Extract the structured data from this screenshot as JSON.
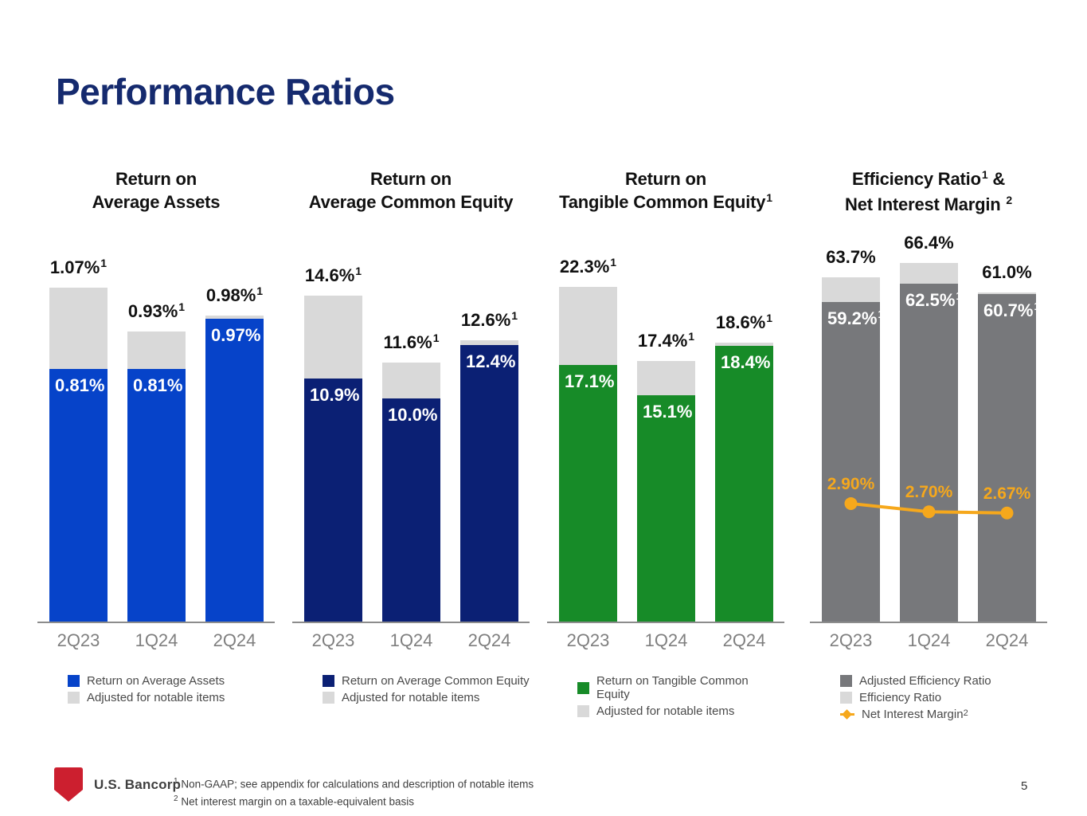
{
  "slide": {
    "title": "Performance Ratios",
    "page_number": "5",
    "logo_text": "U.S. Bancorp",
    "footnotes": [
      {
        "sup": "1",
        "text": "Non-GAAP; see appendix for calculations and description of notable items"
      },
      {
        "sup": "2",
        "text": "Net interest margin on a taxable-equivalent basis"
      }
    ]
  },
  "colors": {
    "title_navy": "#152a6e",
    "blue": "#0643c9",
    "navy": "#0b2074",
    "green": "#178b28",
    "dark_gray": "#77787b",
    "light_gray": "#d9d9d9",
    "orange": "#f6a81c",
    "axis_gray": "#8c8c8c",
    "x_label_gray": "#7f7f7f",
    "logo_red": "#cc1f2f"
  },
  "chart_data": [
    {
      "type": "bar",
      "id": "return-on-average-assets",
      "title_lines": [
        {
          "pre": "Return on",
          "sup": "",
          "post": ""
        },
        {
          "pre": "Average Assets",
          "sup": "",
          "post": ""
        }
      ],
      "categories": [
        "2Q23",
        "1Q24",
        "2Q24"
      ],
      "ylim": [
        0,
        1.07
      ],
      "series": [
        {
          "name": "Return on Average Assets",
          "role": "base",
          "color": "#0643c9",
          "values": [
            0.81,
            0.81,
            0.97
          ]
        },
        {
          "name": "Adjusted for notable items",
          "role": "total",
          "color": "#d9d9d9",
          "values": [
            1.07,
            0.93,
            0.98
          ]
        }
      ],
      "bar_labels": [
        {
          "top": {
            "text": "1.07%",
            "sup": "1"
          },
          "inner": {
            "text": "0.81%",
            "sup": ""
          }
        },
        {
          "top": {
            "text": "0.93%",
            "sup": "1"
          },
          "inner": {
            "text": "0.81%",
            "sup": ""
          }
        },
        {
          "top": {
            "text": "0.98%",
            "sup": "1"
          },
          "inner": {
            "text": "0.97%",
            "sup": ""
          }
        }
      ],
      "legend": [
        {
          "label": "Return on Average Assets",
          "color": "#0643c9",
          "marker": "square",
          "sup": ""
        },
        {
          "label": "Adjusted for notable items",
          "color": "#d9d9d9",
          "marker": "square",
          "sup": ""
        }
      ]
    },
    {
      "type": "bar",
      "id": "return-on-average-common-equity",
      "title_lines": [
        {
          "pre": "Return on",
          "sup": "",
          "post": ""
        },
        {
          "pre": "Average Common Equity",
          "sup": "",
          "post": ""
        }
      ],
      "categories": [
        "2Q23",
        "1Q24",
        "2Q24"
      ],
      "ylim": [
        0,
        14.6
      ],
      "series": [
        {
          "name": "Return on Average Common Equity",
          "role": "base",
          "color": "#0b2074",
          "values": [
            10.9,
            10.0,
            12.4
          ]
        },
        {
          "name": "Adjusted for notable items",
          "role": "total",
          "color": "#d9d9d9",
          "values": [
            14.6,
            11.6,
            12.6
          ]
        }
      ],
      "bar_labels": [
        {
          "top": {
            "text": "14.6%",
            "sup": "1"
          },
          "inner": {
            "text": "10.9%",
            "sup": ""
          }
        },
        {
          "top": {
            "text": "11.6%",
            "sup": "1"
          },
          "inner": {
            "text": "10.0%",
            "sup": ""
          }
        },
        {
          "top": {
            "text": "12.6%",
            "sup": "1"
          },
          "inner": {
            "text": "12.4%",
            "sup": ""
          }
        }
      ],
      "legend": [
        {
          "label": "Return on Average Common Equity",
          "color": "#0b2074",
          "marker": "square",
          "sup": ""
        },
        {
          "label": "Adjusted for notable items",
          "color": "#d9d9d9",
          "marker": "square",
          "sup": ""
        }
      ]
    },
    {
      "type": "bar",
      "id": "return-on-tangible-common-equity",
      "title_lines": [
        {
          "pre": "Return on",
          "sup": "",
          "post": ""
        },
        {
          "pre": "Tangible Common Equity",
          "sup": "1",
          "post": ""
        }
      ],
      "categories": [
        "2Q23",
        "1Q24",
        "2Q24"
      ],
      "ylim": [
        0,
        22.3
      ],
      "series": [
        {
          "name": "Return on Tangible Common Equity",
          "role": "base",
          "color": "#178b28",
          "values": [
            17.1,
            15.1,
            18.4
          ]
        },
        {
          "name": "Adjusted for notable items",
          "role": "total",
          "color": "#d9d9d9",
          "values": [
            22.3,
            17.4,
            18.6
          ]
        }
      ],
      "bar_labels": [
        {
          "top": {
            "text": "22.3%",
            "sup": "1"
          },
          "inner": {
            "text": "17.1%",
            "sup": ""
          }
        },
        {
          "top": {
            "text": "17.4%",
            "sup": "1"
          },
          "inner": {
            "text": "15.1%",
            "sup": ""
          }
        },
        {
          "top": {
            "text": "18.6%",
            "sup": "1"
          },
          "inner": {
            "text": "18.4%",
            "sup": ""
          }
        }
      ],
      "legend": [
        {
          "label": "Return on Tangible Common Equity",
          "color": "#178b28",
          "marker": "square",
          "sup": ""
        },
        {
          "label": "Adjusted for notable items",
          "color": "#d9d9d9",
          "marker": "square",
          "sup": ""
        }
      ]
    },
    {
      "type": "bar",
      "id": "efficiency-ratio-net-interest-margin",
      "title_lines": [
        {
          "pre": "Efficiency Ratio",
          "sup": "1",
          "post": " &"
        },
        {
          "pre": "Net Interest Margin ",
          "sup": "2",
          "post": ""
        }
      ],
      "categories": [
        "2Q23",
        "1Q24",
        "2Q24"
      ],
      "ylim": [
        0,
        66.4
      ],
      "series": [
        {
          "name": "Adjusted Efficiency Ratio",
          "role": "base",
          "color": "#77787b",
          "values": [
            59.2,
            62.5,
            60.7
          ]
        },
        {
          "name": "Efficiency Ratio",
          "role": "total",
          "color": "#d9d9d9",
          "values": [
            63.7,
            66.4,
            61.0
          ]
        }
      ],
      "line_series": {
        "name": "Net Interest Margin",
        "sup": "2",
        "color": "#f6a81c",
        "values": [
          2.9,
          2.7,
          2.67
        ],
        "labels": [
          "2.90%",
          "2.70%",
          "2.67%"
        ]
      },
      "bar_labels": [
        {
          "top": {
            "text": "63.7%",
            "sup": ""
          },
          "inner": {
            "text": "59.2%",
            "sup": "1"
          }
        },
        {
          "top": {
            "text": "66.4%",
            "sup": ""
          },
          "inner": {
            "text": "62.5%",
            "sup": "1"
          }
        },
        {
          "top": {
            "text": "61.0%",
            "sup": ""
          },
          "inner": {
            "text": "60.7%",
            "sup": "1"
          }
        }
      ],
      "legend": [
        {
          "label": "Adjusted Efficiency Ratio",
          "color": "#77787b",
          "marker": "square",
          "sup": ""
        },
        {
          "label": "Efficiency Ratio",
          "color": "#d9d9d9",
          "marker": "square",
          "sup": ""
        },
        {
          "label": "Net Interest Margin",
          "color": "#f6a81c",
          "marker": "line-diamond",
          "sup": "2"
        }
      ]
    }
  ]
}
